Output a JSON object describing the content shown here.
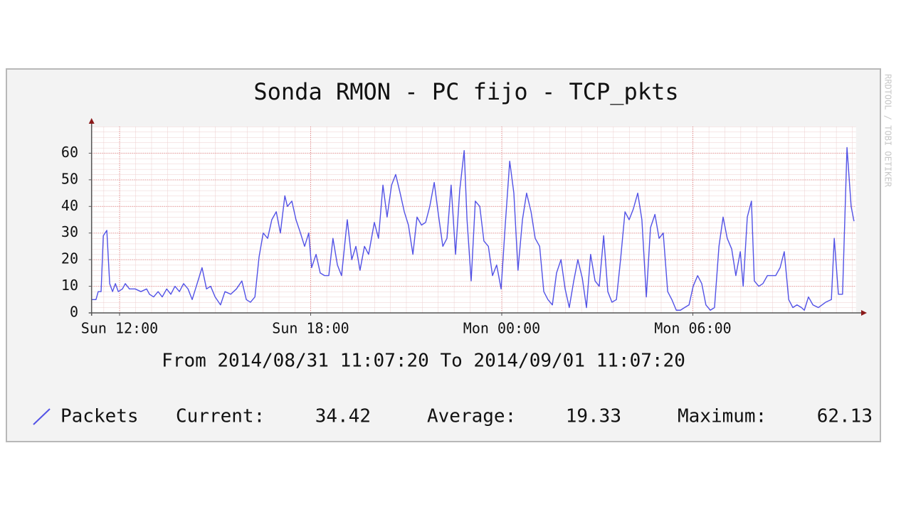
{
  "chart_data": {
    "type": "line",
    "title": "Sonda RMON - PC fijo - TCP_pkts",
    "subtitle": "From 2014/08/31 11:07:20 To 2014/09/01 11:07:20",
    "watermark": "RRDTOOL / TOBI OETIKER",
    "x": [
      11.12,
      11.26,
      11.33,
      11.42,
      11.49,
      11.6,
      11.69,
      11.78,
      11.87,
      11.96,
      12.09,
      12.18,
      12.31,
      12.49,
      12.67,
      12.85,
      12.94,
      13.07,
      13.21,
      13.34,
      13.48,
      13.61,
      13.74,
      13.88,
      14.01,
      14.15,
      14.28,
      14.41,
      14.59,
      14.73,
      14.86,
      15.0,
      15.17,
      15.31,
      15.49,
      15.67,
      15.84,
      15.98,
      16.11,
      16.25,
      16.38,
      16.51,
      16.65,
      16.78,
      16.92,
      17.05,
      17.19,
      17.27,
      17.41,
      17.54,
      17.68,
      17.81,
      17.94,
      18.03,
      18.17,
      18.3,
      18.44,
      18.57,
      18.7,
      18.84,
      18.97,
      19.15,
      19.29,
      19.42,
      19.55,
      19.69,
      19.82,
      20.0,
      20.13,
      20.27,
      20.4,
      20.54,
      20.67,
      20.81,
      20.94,
      21.07,
      21.21,
      21.34,
      21.48,
      21.61,
      21.74,
      21.88,
      22.01,
      22.15,
      22.28,
      22.41,
      22.55,
      22.68,
      22.82,
      22.91,
      23.04,
      23.17,
      23.31,
      23.44,
      23.58,
      23.71,
      23.84,
      23.98,
      24.11,
      24.25,
      24.38,
      24.51,
      24.65,
      24.78,
      24.92,
      25.05,
      25.19,
      25.32,
      25.45,
      25.59,
      25.72,
      25.86,
      25.99,
      26.12,
      26.26,
      26.39,
      26.53,
      26.66,
      26.79,
      26.93,
      27.06,
      27.2,
      27.33,
      27.46,
      27.6,
      27.73,
      27.87,
      28.0,
      28.13,
      28.27,
      28.4,
      28.54,
      28.67,
      28.81,
      28.94,
      29.07,
      29.21,
      29.34,
      29.48,
      29.61,
      29.74,
      29.88,
      30.01,
      30.15,
      30.28,
      30.41,
      30.55,
      30.68,
      30.82,
      30.95,
      31.08,
      31.22,
      31.35,
      31.49,
      31.58,
      31.71,
      31.84,
      31.93,
      32.07,
      32.2,
      32.34,
      32.47,
      32.6,
      32.74,
      32.87,
      33.01,
      33.14,
      33.27,
      33.41,
      33.5,
      33.63,
      33.77,
      33.94,
      34.17,
      34.35,
      34.44,
      34.57,
      34.7,
      34.84,
      34.97,
      35.06
    ],
    "series": [
      {
        "name": "Packets",
        "color": "#5252e6",
        "values": [
          5,
          5,
          8,
          8,
          29,
          31,
          11,
          8,
          11,
          8,
          9,
          11,
          9,
          9,
          8,
          9,
          7,
          6,
          8,
          6,
          9,
          7,
          10,
          8,
          11,
          9,
          5,
          10,
          17,
          9,
          10,
          6,
          3,
          8,
          7,
          9,
          12,
          5,
          4,
          6,
          21,
          30,
          28,
          35,
          38,
          30,
          44,
          40,
          42,
          35,
          30,
          25,
          30,
          17,
          22,
          15,
          14,
          14,
          28,
          18,
          14,
          35,
          20,
          25,
          16,
          25,
          22,
          34,
          28,
          48,
          36,
          48,
          52,
          45,
          38,
          33,
          22,
          36,
          33,
          34,
          40,
          49,
          37,
          25,
          28,
          48,
          22,
          46,
          61,
          35,
          12,
          42,
          40,
          27,
          25,
          14,
          18,
          9,
          33,
          57,
          45,
          16,
          35,
          45,
          38,
          28,
          25,
          8,
          5,
          3,
          15,
          20,
          9,
          2,
          12,
          20,
          13,
          2,
          22,
          12,
          10,
          29,
          8,
          4,
          5,
          20,
          38,
          35,
          39,
          45,
          35,
          6,
          32,
          37,
          28,
          30,
          8,
          5,
          1,
          1,
          2,
          3,
          10,
          14,
          11,
          3,
          1,
          2,
          25,
          36,
          28,
          24,
          14,
          23,
          10,
          36,
          42,
          12,
          10,
          11,
          14,
          14,
          14,
          17,
          23,
          5,
          2,
          3,
          2,
          1,
          6,
          3,
          2,
          4,
          5,
          28,
          7,
          7,
          62.13,
          40,
          34.42
        ]
      }
    ],
    "xlim": [
      11.1222,
      35.1222
    ],
    "xticks": [
      {
        "value": 12,
        "label": "Sun 12:00"
      },
      {
        "value": 18,
        "label": "Sun 18:00"
      },
      {
        "value": 24,
        "label": "Mon 00:00"
      },
      {
        "value": 30,
        "label": "Mon 06:00"
      }
    ],
    "ylim": [
      0,
      70
    ],
    "yticks": [
      0,
      10,
      20,
      30,
      40,
      50,
      60
    ],
    "grid": true,
    "stats": [
      {
        "label": "Current:",
        "value": 34.42
      },
      {
        "label": "Average:",
        "value": 19.33
      },
      {
        "label": "Maximum:",
        "value": 62.13
      }
    ]
  }
}
